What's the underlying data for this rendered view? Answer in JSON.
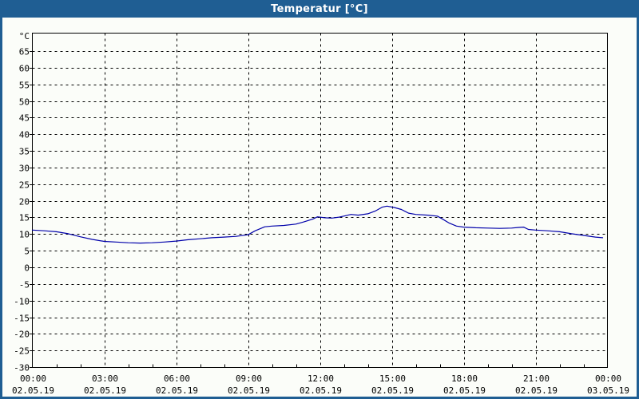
{
  "window": {
    "title": "Temperatur [°C]",
    "title_bar_color": "#1F5E93",
    "border_color": "#1F5E93",
    "background_color": "#FBFDF9"
  },
  "chart_data": {
    "type": "line",
    "title": "Temperatur [°C]",
    "y_unit_label": "°C",
    "ylabel": "°C",
    "xlabel": "",
    "grid": "dashed",
    "gridline_color": "#000000",
    "axis_color": "#000000",
    "line_color": "#0000AA",
    "ylim": [
      -30,
      70.5
    ],
    "y_tick_min": -30,
    "y_tick_max": 65,
    "y_tick_step": 5,
    "x_range_hours": [
      0,
      24
    ],
    "x_major_step_hours": 3,
    "x_minor_step_hours": 1,
    "x_ticks": [
      {
        "hour": 0,
        "time": "00:00",
        "date": "02.05.19"
      },
      {
        "hour": 3,
        "time": "03:00",
        "date": "02.05.19"
      },
      {
        "hour": 6,
        "time": "06:00",
        "date": "02.05.19"
      },
      {
        "hour": 9,
        "time": "09:00",
        "date": "02.05.19"
      },
      {
        "hour": 12,
        "time": "12:00",
        "date": "02.05.19"
      },
      {
        "hour": 15,
        "time": "15:00",
        "date": "02.05.19"
      },
      {
        "hour": 18,
        "time": "18:00",
        "date": "02.05.19"
      },
      {
        "hour": 21,
        "time": "21:00",
        "date": "02.05.19"
      },
      {
        "hour": 24,
        "time": "00:00",
        "date": "03.05.19"
      }
    ],
    "series": [
      {
        "name": "Temperatur",
        "color": "#0000AA",
        "points": [
          [
            0.0,
            11.2
          ],
          [
            0.5,
            11.0
          ],
          [
            1.0,
            10.7
          ],
          [
            1.5,
            10.1
          ],
          [
            2.0,
            9.2
          ],
          [
            2.5,
            8.4
          ],
          [
            3.0,
            7.8
          ],
          [
            3.5,
            7.6
          ],
          [
            4.0,
            7.4
          ],
          [
            4.5,
            7.3
          ],
          [
            5.0,
            7.4
          ],
          [
            5.5,
            7.6
          ],
          [
            6.0,
            7.9
          ],
          [
            6.5,
            8.3
          ],
          [
            7.0,
            8.6
          ],
          [
            7.5,
            8.9
          ],
          [
            8.0,
            9.1
          ],
          [
            8.5,
            9.3
          ],
          [
            9.0,
            9.8
          ],
          [
            9.3,
            11.0
          ],
          [
            9.7,
            12.2
          ],
          [
            10.0,
            12.4
          ],
          [
            10.5,
            12.6
          ],
          [
            11.0,
            13.0
          ],
          [
            11.3,
            13.6
          ],
          [
            11.7,
            14.5
          ],
          [
            11.9,
            15.2
          ],
          [
            12.2,
            14.9
          ],
          [
            12.5,
            14.8
          ],
          [
            12.8,
            15.1
          ],
          [
            13.0,
            15.4
          ],
          [
            13.3,
            15.9
          ],
          [
            13.6,
            15.7
          ],
          [
            14.0,
            16.1
          ],
          [
            14.3,
            16.9
          ],
          [
            14.6,
            18.1
          ],
          [
            14.8,
            18.4
          ],
          [
            15.1,
            18.0
          ],
          [
            15.4,
            17.4
          ],
          [
            15.7,
            16.3
          ],
          [
            16.0,
            15.9
          ],
          [
            16.5,
            15.7
          ],
          [
            16.9,
            15.4
          ],
          [
            17.1,
            14.6
          ],
          [
            17.4,
            13.3
          ],
          [
            17.7,
            12.4
          ],
          [
            18.0,
            12.1
          ],
          [
            18.5,
            11.9
          ],
          [
            19.0,
            11.8
          ],
          [
            19.5,
            11.7
          ],
          [
            20.0,
            11.8
          ],
          [
            20.3,
            12.0
          ],
          [
            20.5,
            12.1
          ],
          [
            20.7,
            11.4
          ],
          [
            21.0,
            11.2
          ],
          [
            21.5,
            11.0
          ],
          [
            22.0,
            10.7
          ],
          [
            22.5,
            10.1
          ],
          [
            23.0,
            9.6
          ],
          [
            23.5,
            9.1
          ],
          [
            23.8,
            8.9
          ]
        ]
      }
    ]
  }
}
